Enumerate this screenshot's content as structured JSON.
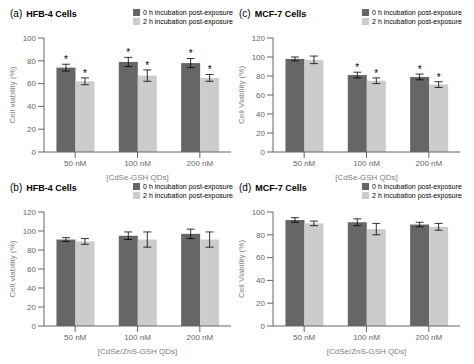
{
  "chart_data": [
    {
      "type": "bar",
      "label": "(a)",
      "title": "HFB-4 Cells",
      "x_label": "[CdSe-GSH QDs]",
      "y_label": "Cell viability (%)",
      "categories": [
        "50 nM",
        "100 nM",
        "200 nM"
      ],
      "series": [
        {
          "name": "0 h incubation post-exposure",
          "color": "#666666",
          "values": [
            74,
            79,
            78
          ],
          "errors": [
            3,
            4,
            4
          ],
          "annotations": [
            "*",
            "*",
            "*"
          ]
        },
        {
          "name": "2 h incubation post-exposure",
          "color": "#cccccc",
          "values": [
            62,
            67,
            65
          ],
          "errors": [
            3,
            5,
            3
          ],
          "annotations": [
            "*",
            "*",
            "*"
          ]
        }
      ],
      "ylim": [
        0,
        100
      ],
      "yticks": [
        0,
        20,
        40,
        60,
        80,
        100
      ],
      "grid": false,
      "legend": "upper right"
    },
    {
      "type": "bar",
      "label": "(c)",
      "title": "MCF-7 Cells",
      "x_label": "[CdSe-GSH QDs]",
      "y_label": "Cell Viability (%)",
      "categories": [
        "50 nM",
        "100 nM",
        "200 nM"
      ],
      "series": [
        {
          "name": "0 h incubation post-exposure",
          "color": "#666666",
          "values": [
            98,
            81,
            79
          ],
          "errors": [
            2,
            3,
            3
          ],
          "annotations": [
            null,
            "*",
            "*"
          ]
        },
        {
          "name": "2 h incubation post-exposure",
          "color": "#cccccc",
          "values": [
            97,
            75,
            71
          ],
          "errors": [
            4,
            3,
            3
          ],
          "annotations": [
            null,
            "*",
            "*"
          ]
        }
      ],
      "ylim": [
        0,
        120
      ],
      "yticks": [
        0,
        20,
        40,
        60,
        80,
        100,
        120
      ],
      "grid": false,
      "legend": "upper right"
    },
    {
      "type": "bar",
      "label": "(b)",
      "title": "HFB-4 Cells",
      "x_label": "[CdSe/ZnS-GSH QDs]",
      "y_label": "Cell viability (%)",
      "categories": [
        "50 nM",
        "100 nM",
        "200 nM"
      ],
      "series": [
        {
          "name": "0 h incubation post-exposure",
          "color": "#666666",
          "values": [
            91,
            95,
            97
          ],
          "errors": [
            2,
            4,
            5
          ],
          "annotations": [
            null,
            null,
            null
          ]
        },
        {
          "name": "2 h incubation post-exposure",
          "color": "#cccccc",
          "values": [
            89,
            91,
            91
          ],
          "errors": [
            3,
            8,
            8
          ],
          "annotations": [
            null,
            null,
            null
          ]
        }
      ],
      "ylim": [
        0,
        120
      ],
      "yticks": [
        0,
        20,
        40,
        60,
        80,
        100,
        120
      ],
      "grid": false,
      "legend": "upper right"
    },
    {
      "type": "bar",
      "label": "(d)",
      "title": "MCF-7 Cells",
      "x_label": "[CdSe/ZnS-GSH QDs]",
      "y_label": "Cell Viability (%)",
      "categories": [
        "50 nM",
        "100 nM",
        "200 nM"
      ],
      "series": [
        {
          "name": "0 h incubation post-exposure",
          "color": "#666666",
          "values": [
            93,
            91,
            89
          ],
          "errors": [
            2,
            3,
            2
          ],
          "annotations": [
            null,
            null,
            null
          ]
        },
        {
          "name": "2 h incubation post-exposure",
          "color": "#cccccc",
          "values": [
            90,
            85,
            87
          ],
          "errors": [
            2,
            5,
            3
          ],
          "annotations": [
            null,
            null,
            null
          ]
        }
      ],
      "ylim": [
        0,
        100
      ],
      "yticks": [
        0,
        20,
        40,
        60,
        80,
        100
      ],
      "grid": false,
      "legend": "upper right"
    }
  ]
}
